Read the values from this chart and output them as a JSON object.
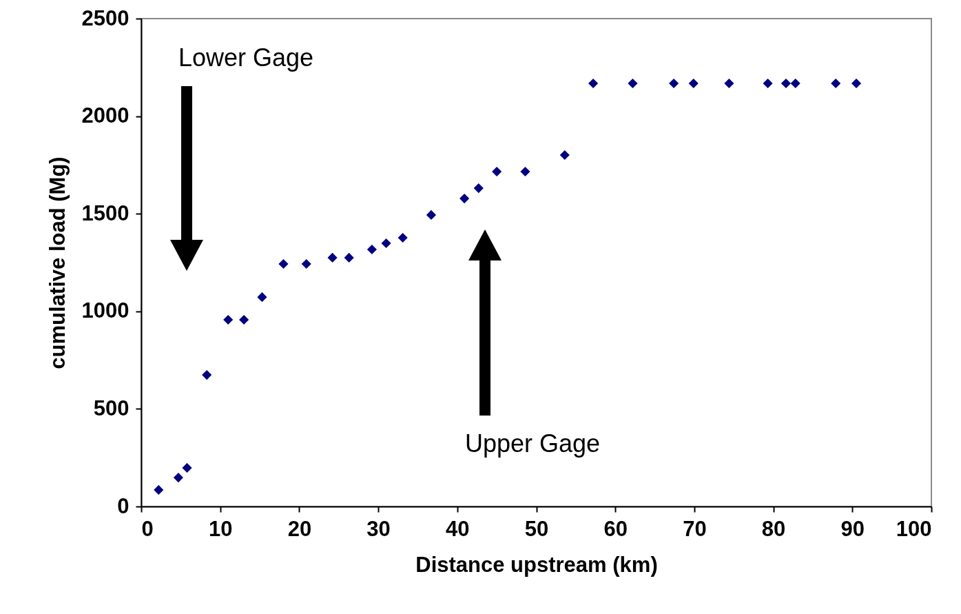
{
  "chart_data": {
    "type": "scatter",
    "xlabel": "Distance upstream (km)",
    "ylabel": "cumulative load (Mg)",
    "x": [
      2.2,
      4.7,
      5.8,
      8.3,
      11.0,
      13.0,
      15.3,
      18.0,
      20.9,
      24.2,
      26.3,
      29.2,
      31.0,
      33.1,
      36.7,
      40.9,
      42.7,
      45.0,
      48.6,
      53.6,
      57.2,
      62.2,
      67.4,
      69.9,
      74.4,
      79.3,
      81.6,
      82.8,
      87.9,
      90.5
    ],
    "values": [
      85,
      148,
      198,
      674,
      957,
      957,
      1073,
      1243,
      1243,
      1275,
      1275,
      1317,
      1349,
      1377,
      1494,
      1578,
      1631,
      1716,
      1716,
      1801,
      2168,
      2168,
      2168,
      2168,
      2168,
      2168,
      2168,
      2168,
      2168,
      2168
    ],
    "color": "#000080",
    "marker": "diamond",
    "xlim": [
      0,
      100
    ],
    "xticks": [
      0,
      10,
      20,
      30,
      40,
      50,
      60,
      70,
      80,
      90,
      100
    ],
    "ylim": [
      0,
      2500
    ],
    "yticks": [
      0,
      500,
      1000,
      1500,
      2000,
      2500
    ],
    "grid": false,
    "annotations": [
      "Lower Gage",
      "Upper Gage"
    ]
  }
}
